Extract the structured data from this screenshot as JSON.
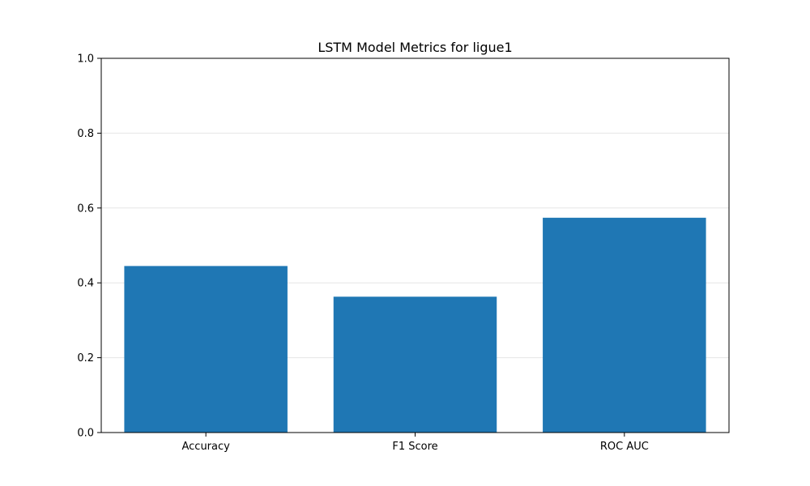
{
  "chart_data": {
    "type": "bar",
    "title": "LSTM Model Metrics for ligue1",
    "xlabel": "",
    "ylabel": "",
    "categories": [
      "Accuracy",
      "F1 Score",
      "ROC AUC"
    ],
    "values": [
      0.445,
      0.363,
      0.574
    ],
    "ylim": [
      0,
      1.0
    ],
    "yticks": [
      0.0,
      0.2,
      0.4,
      0.6,
      0.8,
      1.0
    ],
    "ytick_labels": [
      "0.0",
      "0.2",
      "0.4",
      "0.6",
      "0.8",
      "1.0"
    ],
    "grid": "y-axis",
    "legend": "none",
    "bar_color": "#1f77b4",
    "grid_color": "#e6e6e6"
  }
}
